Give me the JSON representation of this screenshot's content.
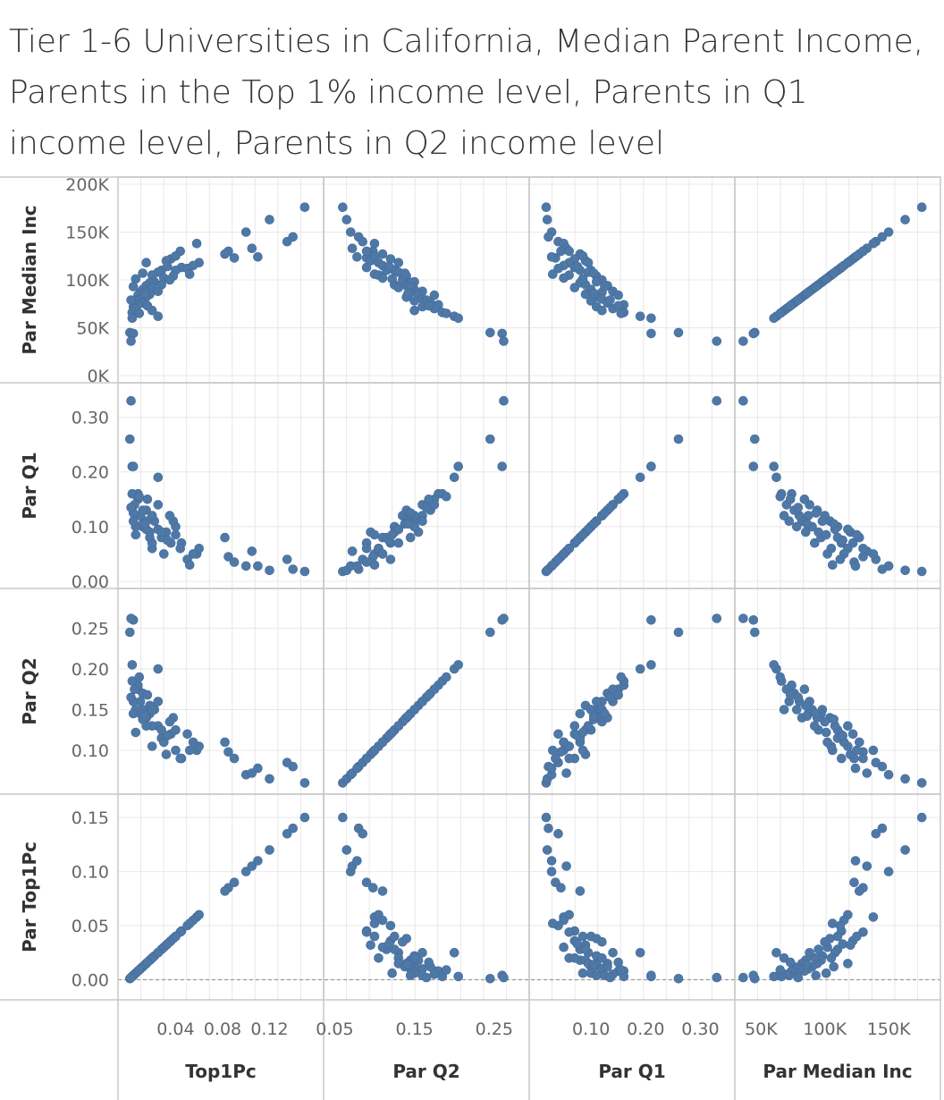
{
  "chart_data": {
    "type": "scatter",
    "subtype": "scatterplot-matrix",
    "title": "Tier 1-6 Universities in California, Median Parent Income, Parents in the Top 1% income level, Parents in Q1 income level, Parents in Q2 income level",
    "point_color": "#4e79a7",
    "rows": [
      {
        "key": "par_median",
        "label": "Par Median Inc",
        "range": [
          0,
          200000
        ],
        "ticks": [
          {
            "v": 200000,
            "t": "200K"
          },
          {
            "v": 150000,
            "t": "150K"
          },
          {
            "v": 100000,
            "t": "100K"
          },
          {
            "v": 50000,
            "t": "50K"
          },
          {
            "v": 0,
            "t": "0K"
          }
        ]
      },
      {
        "key": "par_q1",
        "label": "Par Q1",
        "range": [
          0,
          0.35
        ],
        "ticks": [
          {
            "v": 0.3,
            "t": "0.30"
          },
          {
            "v": 0.2,
            "t": "0.20"
          },
          {
            "v": 0.1,
            "t": "0.10"
          },
          {
            "v": 0,
            "t": "0.00"
          }
        ]
      },
      {
        "key": "par_q2",
        "label": "Par Q2",
        "range": [
          0.055,
          0.29
        ],
        "ticks": [
          {
            "v": 0.25,
            "t": "0.25"
          },
          {
            "v": 0.2,
            "t": "0.20"
          },
          {
            "v": 0.15,
            "t": "0.15"
          },
          {
            "v": 0.1,
            "t": "0.10"
          }
        ]
      },
      {
        "key": "top1pc",
        "label": "Par Top1Pc",
        "range": [
          -0.012,
          0.165
        ],
        "ticks": [
          {
            "v": 0.15,
            "t": "0.15"
          },
          {
            "v": 0.1,
            "t": "0.10"
          },
          {
            "v": 0.05,
            "t": "0.05"
          },
          {
            "v": 0,
            "t": "0.00"
          }
        ]
      }
    ],
    "columns": [
      {
        "key": "top1pc",
        "label": "Top1Pc",
        "range": [
          -0.003,
          0.16
        ],
        "ticks": [
          {
            "v": 0.04,
            "t": "0.04"
          },
          {
            "v": 0.08,
            "t": "0.08"
          },
          {
            "v": 0.12,
            "t": "0.12"
          }
        ]
      },
      {
        "key": "par_q2",
        "label": "Par Q2",
        "range": [
          0.045,
          0.285
        ],
        "ticks": [
          {
            "v": 0.05,
            "t": "0.05"
          },
          {
            "v": 0.15,
            "t": "0.15"
          },
          {
            "v": 0.25,
            "t": "0.25"
          }
        ]
      },
      {
        "key": "par_q1",
        "label": "Par Q1",
        "range": [
          0.0,
          0.35
        ],
        "ticks": [
          {
            "v": 0.1,
            "t": "0.10"
          },
          {
            "v": 0.2,
            "t": "0.20"
          },
          {
            "v": 0.3,
            "t": "0.30"
          }
        ]
      },
      {
        "key": "par_median",
        "label": "Par Median Inc",
        "range": [
          35000,
          185000
        ],
        "ticks": [
          {
            "v": 50000,
            "t": "50K"
          },
          {
            "v": 100000,
            "t": "100K"
          },
          {
            "v": 150000,
            "t": "150K"
          }
        ]
      }
    ],
    "points": [
      {
        "par_median": 176000,
        "top1pc": 0.15,
        "par_q1": 0.018,
        "par_q2": 0.06
      },
      {
        "par_median": 163000,
        "top1pc": 0.12,
        "par_q1": 0.02,
        "par_q2": 0.065
      },
      {
        "par_median": 150000,
        "top1pc": 0.1,
        "par_q1": 0.028,
        "par_q2": 0.07
      },
      {
        "par_median": 145000,
        "top1pc": 0.14,
        "par_q1": 0.022,
        "par_q2": 0.08
      },
      {
        "par_median": 140000,
        "top1pc": 0.135,
        "par_q1": 0.04,
        "par_q2": 0.085
      },
      {
        "par_median": 138000,
        "top1pc": 0.058,
        "par_q1": 0.05,
        "par_q2": 0.1
      },
      {
        "par_median": 133000,
        "top1pc": 0.105,
        "par_q1": 0.055,
        "par_q2": 0.072
      },
      {
        "par_median": 130000,
        "top1pc": 0.085,
        "par_q1": 0.045,
        "par_q2": 0.098
      },
      {
        "par_median": 127000,
        "top1pc": 0.082,
        "par_q1": 0.08,
        "par_q2": 0.11
      },
      {
        "par_median": 123000,
        "top1pc": 0.09,
        "par_q1": 0.035,
        "par_q2": 0.09
      },
      {
        "par_median": 124000,
        "top1pc": 0.11,
        "par_q1": 0.028,
        "par_q2": 0.078
      },
      {
        "par_median": 122000,
        "top1pc": 0.036,
        "par_q1": 0.07,
        "par_q2": 0.12
      },
      {
        "par_median": 120000,
        "top1pc": 0.032,
        "par_q1": 0.09,
        "par_q2": 0.095
      },
      {
        "par_median": 118000,
        "top1pc": 0.06,
        "par_q1": 0.06,
        "par_q2": 0.105
      },
      {
        "par_median": 115000,
        "top1pc": 0.055,
        "par_q1": 0.05,
        "par_q2": 0.11
      },
      {
        "par_median": 113000,
        "top1pc": 0.045,
        "par_q1": 0.07,
        "par_q2": 0.09
      },
      {
        "par_median": 112000,
        "top1pc": 0.05,
        "par_q1": 0.04,
        "par_q2": 0.12
      },
      {
        "par_median": 110000,
        "top1pc": 0.04,
        "par_q1": 0.1,
        "par_q2": 0.125
      },
      {
        "par_median": 110000,
        "top1pc": 0.028,
        "par_q1": 0.08,
        "par_q2": 0.115
      },
      {
        "par_median": 108000,
        "top1pc": 0.025,
        "par_q1": 0.095,
        "par_q2": 0.13
      },
      {
        "par_median": 106000,
        "top1pc": 0.052,
        "par_q1": 0.03,
        "par_q2": 0.1
      },
      {
        "par_median": 105000,
        "top1pc": 0.02,
        "par_q1": 0.06,
        "par_q2": 0.105
      },
      {
        "par_median": 104000,
        "top1pc": 0.038,
        "par_q1": 0.11,
        "par_q2": 0.14
      },
      {
        "par_median": 102000,
        "top1pc": 0.03,
        "par_q1": 0.05,
        "par_q2": 0.11
      },
      {
        "par_median": 100000,
        "top1pc": 0.035,
        "par_q1": 0.12,
        "par_q2": 0.135
      },
      {
        "par_median": 98000,
        "top1pc": 0.022,
        "par_q1": 0.11,
        "par_q2": 0.15
      },
      {
        "par_median": 97000,
        "top1pc": 0.018,
        "par_q1": 0.08,
        "par_q2": 0.145
      },
      {
        "par_median": 95000,
        "top1pc": 0.028,
        "par_q1": 0.09,
        "par_q2": 0.125
      },
      {
        "par_median": 94000,
        "top1pc": 0.015,
        "par_q1": 0.13,
        "par_q2": 0.14
      },
      {
        "par_median": 92000,
        "top1pc": 0.02,
        "par_q1": 0.07,
        "par_q2": 0.13
      },
      {
        "par_median": 90000,
        "top1pc": 0.012,
        "par_q1": 0.1,
        "par_q2": 0.15
      },
      {
        "par_median": 88000,
        "top1pc": 0.025,
        "par_q1": 0.14,
        "par_q2": 0.16
      },
      {
        "par_median": 87000,
        "top1pc": 0.01,
        "par_q1": 0.12,
        "par_q2": 0.145
      },
      {
        "par_median": 85000,
        "top1pc": 0.018,
        "par_q1": 0.09,
        "par_q2": 0.155
      },
      {
        "par_median": 84000,
        "top1pc": 0.008,
        "par_q1": 0.15,
        "par_q2": 0.175
      },
      {
        "par_median": 82000,
        "top1pc": 0.015,
        "par_q1": 0.11,
        "par_q2": 0.14
      },
      {
        "par_median": 80000,
        "top1pc": 0.01,
        "par_q1": 0.12,
        "par_q2": 0.16
      },
      {
        "par_median": 78000,
        "top1pc": 0.006,
        "par_q1": 0.1,
        "par_q2": 0.15
      },
      {
        "par_median": 76000,
        "top1pc": 0.012,
        "par_q1": 0.13,
        "par_q2": 0.17
      },
      {
        "par_median": 74000,
        "top1pc": 0.008,
        "par_q1": 0.16,
        "par_q2": 0.18
      },
      {
        "par_median": 72000,
        "top1pc": 0.004,
        "par_q1": 0.11,
        "par_q2": 0.16
      },
      {
        "par_median": 70000,
        "top1pc": 0.005,
        "par_q1": 0.14,
        "par_q2": 0.175
      },
      {
        "par_median": 68000,
        "top1pc": 0.02,
        "par_q1": 0.12,
        "par_q2": 0.15
      },
      {
        "par_median": 66000,
        "top1pc": 0.003,
        "par_q1": 0.16,
        "par_q2": 0.185
      },
      {
        "par_median": 62000,
        "top1pc": 0.025,
        "par_q1": 0.19,
        "par_q2": 0.2
      },
      {
        "par_median": 60000,
        "top1pc": 0.003,
        "par_q1": 0.21,
        "par_q2": 0.205
      },
      {
        "par_median": 45000,
        "top1pc": 0.001,
        "par_q1": 0.26,
        "par_q2": 0.245
      },
      {
        "par_median": 44000,
        "top1pc": 0.004,
        "par_q1": 0.21,
        "par_q2": 0.26
      },
      {
        "par_median": 36000,
        "top1pc": 0.002,
        "par_q1": 0.33,
        "par_q2": 0.262
      },
      {
        "par_median": 130000,
        "top1pc": 0.044,
        "par_q1": 0.06,
        "par_q2": 0.09
      },
      {
        "par_median": 125000,
        "top1pc": 0.04,
        "par_q1": 0.085,
        "par_q2": 0.1
      },
      {
        "par_median": 118000,
        "top1pc": 0.015,
        "par_q1": 0.095,
        "par_q2": 0.13
      },
      {
        "par_median": 114000,
        "top1pc": 0.033,
        "par_q1": 0.075,
        "par_q2": 0.118
      },
      {
        "par_median": 107000,
        "top1pc": 0.012,
        "par_q1": 0.105,
        "par_q2": 0.138
      },
      {
        "par_median": 101000,
        "top1pc": 0.006,
        "par_q1": 0.085,
        "par_q2": 0.122
      },
      {
        "par_median": 93000,
        "top1pc": 0.004,
        "par_q1": 0.125,
        "par_q2": 0.145
      },
      {
        "par_median": 86000,
        "top1pc": 0.014,
        "par_q1": 0.105,
        "par_q2": 0.142
      },
      {
        "par_median": 79000,
        "top1pc": 0.002,
        "par_q1": 0.135,
        "par_q2": 0.165
      },
      {
        "par_median": 73000,
        "top1pc": 0.016,
        "par_q1": 0.15,
        "par_q2": 0.168
      },
      {
        "par_median": 65000,
        "top1pc": 0.009,
        "par_q1": 0.155,
        "par_q2": 0.19
      }
    ]
  }
}
